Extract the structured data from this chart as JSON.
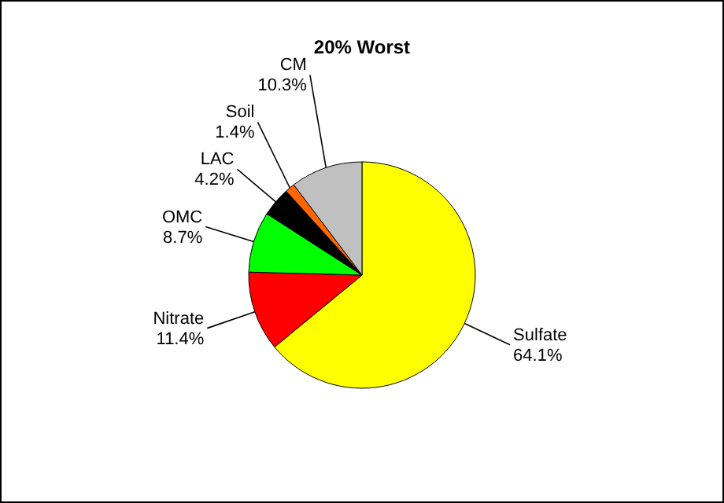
{
  "chart_data": {
    "type": "pie",
    "title": "20% Worst",
    "categories": [
      "Sulfate",
      "Nitrate",
      "OMC",
      "LAC",
      "Soil",
      "CM"
    ],
    "values": [
      64.1,
      11.4,
      8.7,
      4.2,
      1.4,
      10.3
    ],
    "colors": [
      "#ffff00",
      "#ff0000",
      "#00ff00",
      "#000000",
      "#ff6600",
      "#c0c0c0"
    ],
    "value_labels": [
      "64.1%",
      "11.4%",
      "8.7%",
      "4.2%",
      "1.4%",
      "10.3%"
    ]
  }
}
